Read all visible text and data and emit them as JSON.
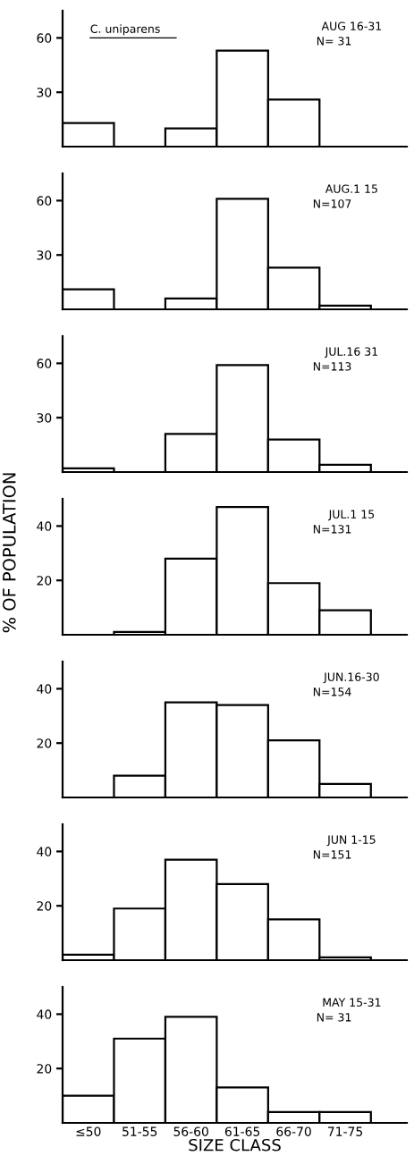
{
  "chart_data": [
    {
      "type": "bar",
      "categories": [
        null,
        null,
        null,
        null,
        null,
        null
      ],
      "values": [
        13,
        0,
        10,
        53,
        26,
        0
      ],
      "color": "#ffffff",
      "ylim": [
        0,
        75
      ],
      "yticks": [
        30,
        60
      ],
      "tick_labels": "y",
      "annotations": [
        "C. uniparens",
        "AUG 16-31",
        "N= 31"
      ]
    },
    {
      "type": "bar",
      "categories": [
        null,
        null,
        null,
        null,
        null,
        null
      ],
      "values": [
        11,
        0,
        6,
        61,
        23,
        2
      ],
      "color": "#ffffff",
      "ylim": [
        0,
        75
      ],
      "yticks": [
        30,
        60
      ],
      "tick_labels": "y",
      "annotations": [
        "AUG.1 15",
        "N=107"
      ]
    },
    {
      "type": "bar",
      "categories": [
        null,
        null,
        null,
        null,
        null,
        null
      ],
      "values": [
        2,
        0,
        21,
        59,
        18,
        4
      ],
      "color": "#ffffff",
      "ylim": [
        0,
        75
      ],
      "yticks": [
        30,
        60
      ],
      "tick_labels": "y",
      "annotations": [
        "JUL.16 31",
        "N=113"
      ]
    },
    {
      "type": "bar",
      "categories": [
        null,
        null,
        null,
        null,
        null,
        null
      ],
      "values": [
        0,
        1,
        28,
        47,
        19,
        9
      ],
      "color": "#ffffff",
      "ylim": [
        0,
        50
      ],
      "yticks": [
        20,
        40
      ],
      "tick_labels": "y",
      "ylabel": "% OF POPULATION",
      "annotations": [
        "JUL.1 15",
        "N=131"
      ]
    },
    {
      "type": "bar",
      "categories": [
        null,
        null,
        null,
        null,
        null,
        null
      ],
      "values": [
        0,
        8,
        35,
        34,
        21,
        5
      ],
      "color": "#ffffff",
      "ylim": [
        0,
        50
      ],
      "yticks": [
        20,
        40
      ],
      "tick_labels": "y",
      "annotations": [
        "JUN.16-30",
        "N=154"
      ]
    },
    {
      "type": "bar",
      "categories": [
        null,
        null,
        null,
        null,
        null,
        null
      ],
      "values": [
        2,
        19,
        37,
        28,
        15,
        1
      ],
      "color": "#ffffff",
      "ylim": [
        0,
        50
      ],
      "yticks": [
        20,
        40
      ],
      "tick_labels": "y",
      "annotations": [
        "JUN 1-15",
        "N=151"
      ]
    },
    {
      "type": "bar",
      "categories": [
        "≤50",
        "51-55",
        "56-60",
        "61-65",
        "66-70",
        "71-75"
      ],
      "values": [
        10,
        31,
        39,
        13,
        4,
        4
      ],
      "color": "#ffffff",
      "ylim": [
        0,
        50
      ],
      "yticks": [
        20,
        40
      ],
      "xlabel": "SIZE CLASS",
      "annotations": [
        "MAY 15-31",
        "N= 31"
      ]
    }
  ]
}
